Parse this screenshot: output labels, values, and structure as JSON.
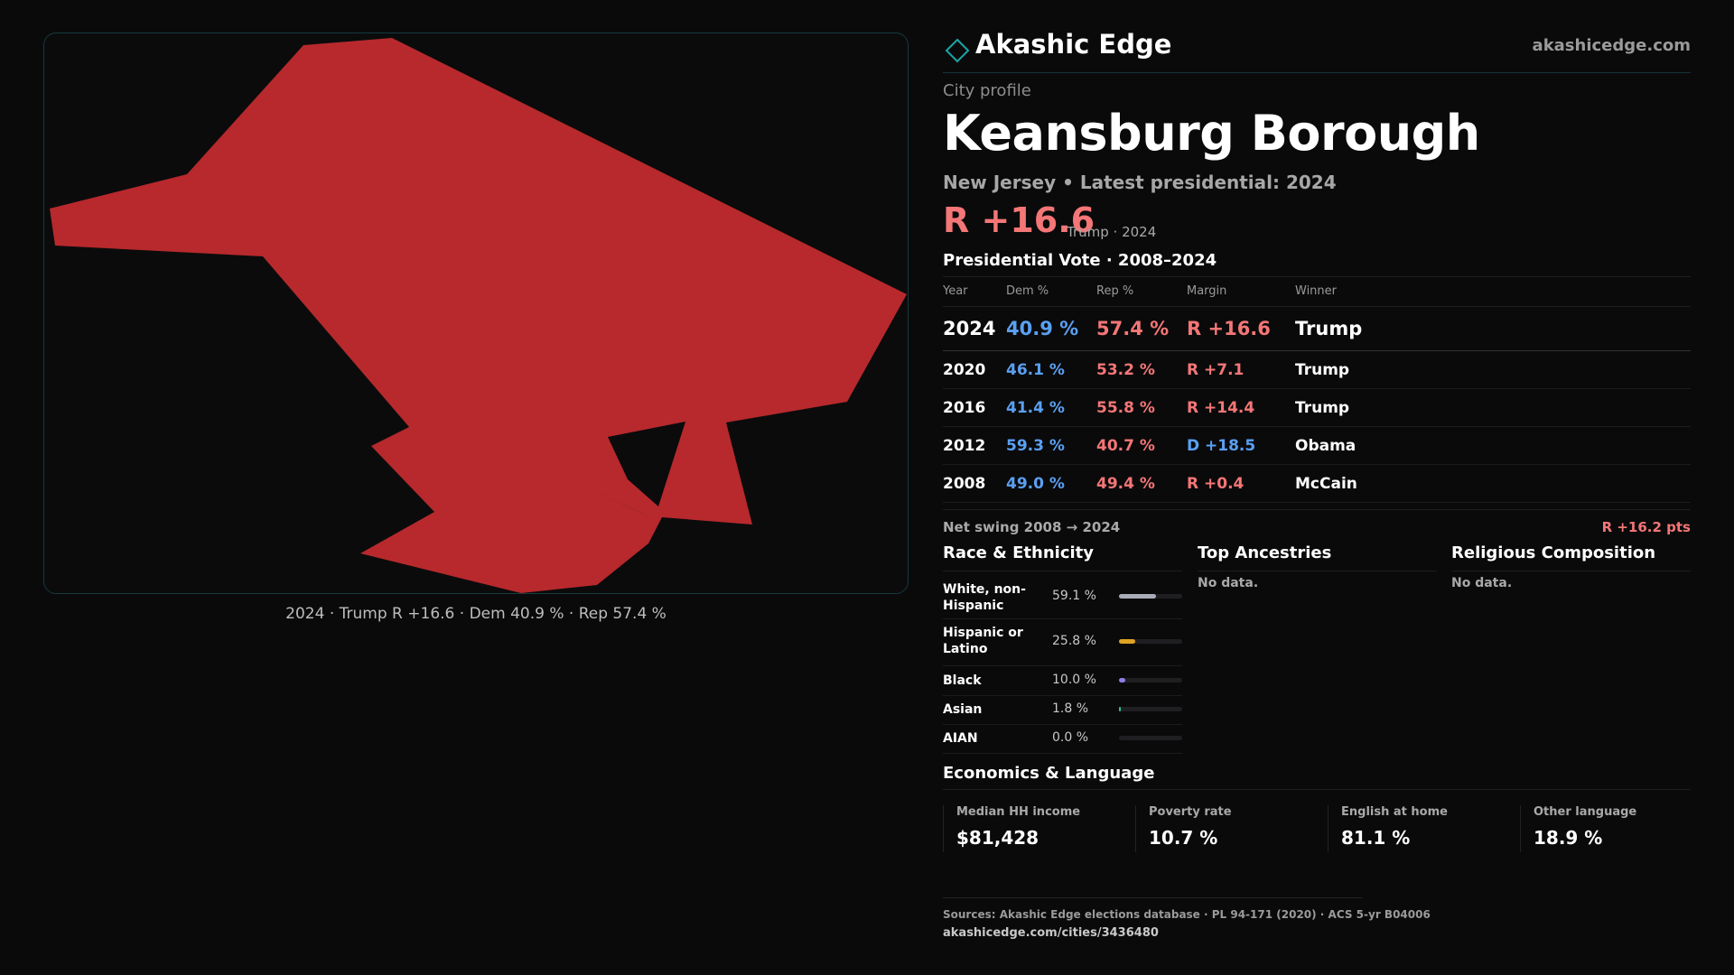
{
  "header": {
    "brand_name": "Akashic Edge",
    "brand_url": "akashicedge.com",
    "brand_color": "#1aa6a6"
  },
  "profile": {
    "label": "City profile",
    "title": "Keansburg Borough",
    "subtitle": "New Jersey • Latest presidential: 2024",
    "margin": "R +16.6",
    "margin_note": "Trump · 2024"
  },
  "map": {
    "fill_color": "#b7292c",
    "caption": "2024 · Trump R +16.6 · Dem 40.9 % · Rep 57.4 %"
  },
  "vote": {
    "title": "Presidential Vote · 2008–2024",
    "headers": {
      "year": "Year",
      "dem": "Dem %",
      "rep": "Rep %",
      "margin": "Margin",
      "winner": "Winner"
    },
    "rows": [
      {
        "year": "2024",
        "dem": "40.9 %",
        "rep": "57.4 %",
        "margin": "R +16.6",
        "party": "R",
        "winner": "Trump"
      },
      {
        "year": "2020",
        "dem": "46.1 %",
        "rep": "53.2 %",
        "margin": "R +7.1",
        "party": "R",
        "winner": "Trump"
      },
      {
        "year": "2016",
        "dem": "41.4 %",
        "rep": "55.8 %",
        "margin": "R +14.4",
        "party": "R",
        "winner": "Trump"
      },
      {
        "year": "2012",
        "dem": "59.3 %",
        "rep": "40.7 %",
        "margin": "D +18.5",
        "party": "D",
        "winner": "Obama"
      },
      {
        "year": "2008",
        "dem": "49.0 %",
        "rep": "49.4 %",
        "margin": "R +0.4",
        "party": "R",
        "winner": "McCain"
      }
    ],
    "swing_label": "Net swing 2008 → 2024",
    "swing_value": "R +16.2 pts",
    "colors": {
      "dem": "#5aa0f2",
      "rep": "#f47676"
    }
  },
  "race": {
    "title": "Race & Ethnicity",
    "rows": [
      {
        "label": "White, non-Hispanic",
        "pct": "59.1 %",
        "value": 0.591,
        "color": "#a9adb8"
      },
      {
        "label": "Hispanic or Latino",
        "pct": "25.8 %",
        "value": 0.258,
        "color": "#e0a424"
      },
      {
        "label": "Black",
        "pct": "10.0 %",
        "value": 0.1,
        "color": "#8e7ce6"
      },
      {
        "label": "Asian",
        "pct": "1.8 %",
        "value": 0.018,
        "color": "#2fbf94"
      },
      {
        "label": "AIAN",
        "pct": "0.0 %",
        "value": 0.0,
        "color": "#7a7a7a"
      }
    ]
  },
  "ancestries": {
    "title": "Top Ancestries",
    "empty": "No data."
  },
  "religion": {
    "title": "Religious Composition",
    "empty": "No data."
  },
  "economics": {
    "title": "Economics & Language",
    "items": [
      {
        "label": "Median HH income",
        "value": "$81,428"
      },
      {
        "label": "Poverty rate",
        "value": "10.7 %"
      },
      {
        "label": "English at home",
        "value": "81.1 %"
      },
      {
        "label": "Other language",
        "value": "18.9 %"
      }
    ]
  },
  "footer": {
    "sources": "Sources: Akashic Edge elections database · PL 94-171 (2020) · ACS 5-yr B04006",
    "url": "akashicedge.com/cities/3436480"
  }
}
